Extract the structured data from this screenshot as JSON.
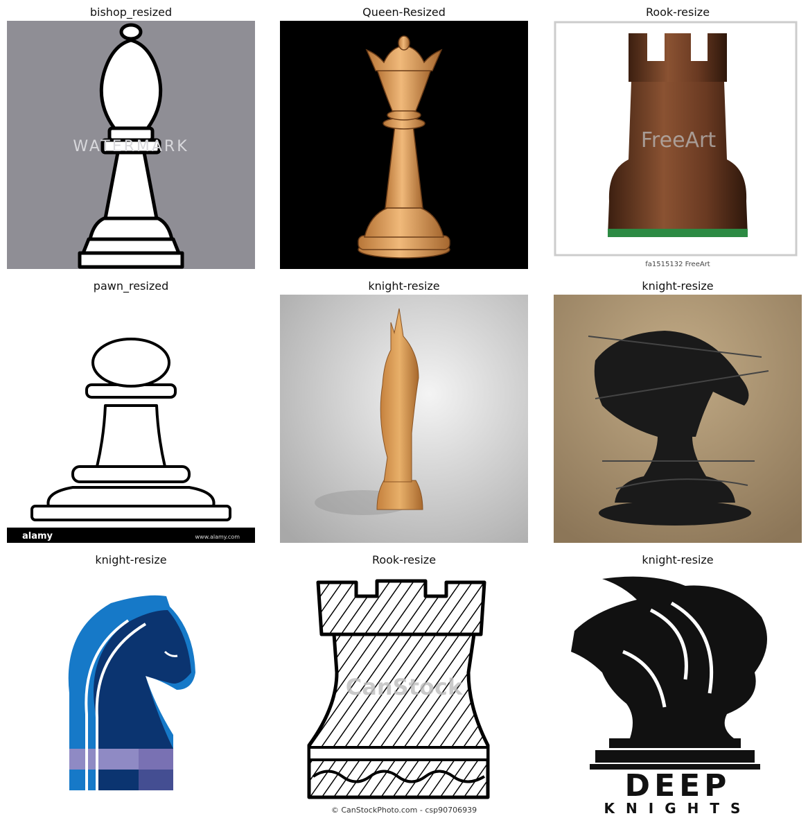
{
  "panels": [
    {
      "title": "bishop_resized",
      "watermark": "WATERMARK"
    },
    {
      "title": "Queen-Resized"
    },
    {
      "title": "Rook-resize",
      "caption": "fa1515132 FreeArt",
      "watermark": "FreeArt"
    },
    {
      "title": "pawn_resized",
      "banner": "alamy",
      "banner_right": "www.alamy.com"
    },
    {
      "title": "knight-resize"
    },
    {
      "title": "knight-resize"
    },
    {
      "title": "knight-resize"
    },
    {
      "title": "Rook-resize",
      "watermark": "CanStock",
      "caption": "© CanStockPhoto.com - csp90706939"
    },
    {
      "title": "knight-resize",
      "logo_text": "DEEP",
      "logo_subtext": "KNIGHTS"
    }
  ],
  "colors": {
    "bishop_bg": "#8f8e95",
    "queen_bg": "#000000",
    "wood": "#d79b5c",
    "dark_wood": "#5a3320",
    "knight_blue": "#1679c8",
    "knight_navy": "#0b3470",
    "knight_lavender": "#8f8ac4",
    "brown_bg": "#a18a66"
  }
}
